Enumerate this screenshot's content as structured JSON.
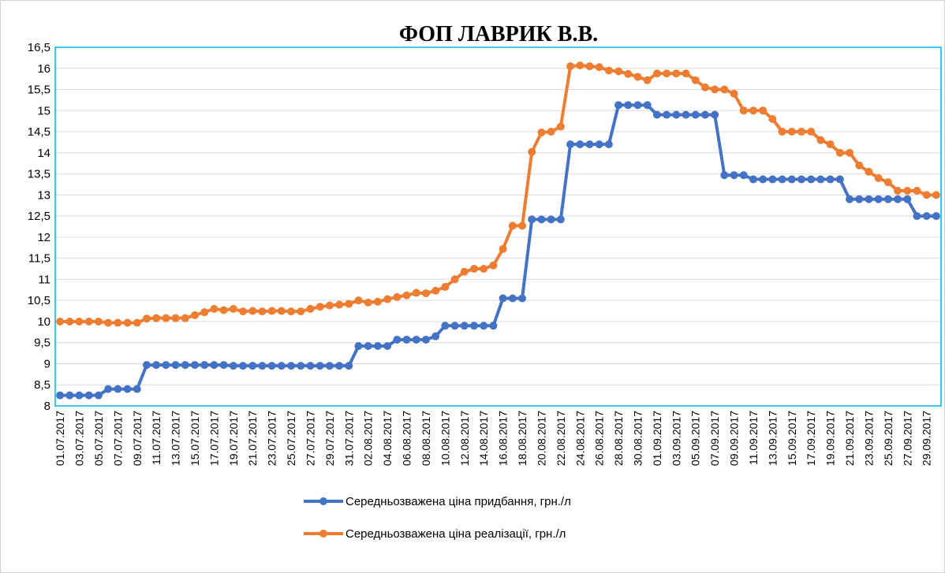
{
  "chart_data": {
    "type": "line",
    "title": "ФОП ЛАВРИК В.В.",
    "categories": [
      "01.07.2017",
      null,
      "03.07.2017",
      null,
      "05.07.2017",
      null,
      "07.07.2017",
      null,
      "09.07.2017",
      null,
      "11.07.2017",
      null,
      "13.07.2017",
      null,
      "15.07.2017",
      null,
      "17.07.2017",
      null,
      "19.07.2017",
      null,
      "21.07.2017",
      null,
      "23.07.2017",
      null,
      "25.07.2017",
      null,
      "27.07.2017",
      null,
      "29.07.2017",
      null,
      "31.07.2017",
      null,
      "02.08.2017",
      null,
      "04.08.2017",
      null,
      "06.08.2017",
      null,
      "08.08.2017",
      null,
      "10.08.2017",
      null,
      "12.08.2017",
      null,
      "14.08.2017",
      null,
      "16.08.2017",
      null,
      "18.08.2017",
      null,
      "20.08.2017",
      null,
      "22.08.2017",
      null,
      "24.08.2017",
      null,
      "26.08.2017",
      null,
      "28.08.2017",
      null,
      "30.08.2017",
      null,
      "01.09.2017",
      null,
      "03.09.2017",
      null,
      "05.09.2017",
      null,
      "07.09.2017",
      null,
      "09.09.2017",
      null,
      "11.09.2017",
      null,
      "13.09.2017",
      null,
      "15.09.2017",
      null,
      "17.09.2017",
      null,
      "19.09.2017",
      null,
      "21.09.2017",
      null,
      "23.09.2017",
      null,
      "25.09.2017",
      null,
      "27.09.2017",
      null,
      "29.09.2017",
      null
    ],
    "series": [
      {
        "name": "Середньозважена ціна придбання, грн./л",
        "color": "#4472c4",
        "values": [
          8.25,
          8.25,
          8.25,
          8.25,
          8.25,
          8.4,
          8.4,
          8.4,
          8.4,
          8.97,
          8.97,
          8.97,
          8.97,
          8.97,
          8.97,
          8.97,
          8.97,
          8.97,
          8.95,
          8.95,
          8.95,
          8.95,
          8.95,
          8.95,
          8.95,
          8.95,
          8.95,
          8.95,
          8.95,
          8.95,
          8.95,
          9.42,
          9.42,
          9.42,
          9.42,
          9.57,
          9.57,
          9.57,
          9.57,
          9.65,
          9.9,
          9.9,
          9.9,
          9.9,
          9.9,
          9.9,
          10.55,
          10.55,
          10.55,
          12.42,
          12.42,
          12.42,
          12.42,
          14.2,
          14.2,
          14.2,
          14.2,
          14.2,
          15.13,
          15.13,
          15.13,
          15.13,
          14.9,
          14.9,
          14.9,
          14.9,
          14.9,
          14.9,
          14.9,
          13.47,
          13.47,
          13.47,
          13.37,
          13.37,
          13.37,
          13.37,
          13.37,
          13.37,
          13.37,
          13.37,
          13.37,
          13.37,
          12.9,
          12.9,
          12.9,
          12.9,
          12.9,
          12.9,
          12.9,
          12.5,
          12.5,
          12.5
        ]
      },
      {
        "name": "Середньозважена ціна реалізації, грн./л",
        "color": "#ed7d31",
        "values": [
          10.0,
          10.0,
          10.0,
          10.0,
          10.0,
          9.97,
          9.97,
          9.97,
          9.97,
          10.07,
          10.08,
          10.08,
          10.08,
          10.08,
          10.15,
          10.22,
          10.3,
          10.27,
          10.3,
          10.24,
          10.25,
          10.24,
          10.25,
          10.25,
          10.24,
          10.24,
          10.3,
          10.35,
          10.38,
          10.4,
          10.42,
          10.5,
          10.45,
          10.47,
          10.53,
          10.58,
          10.62,
          10.68,
          10.67,
          10.73,
          10.82,
          11.0,
          11.18,
          11.25,
          11.25,
          11.33,
          11.72,
          12.27,
          12.27,
          14.02,
          14.48,
          14.5,
          14.62,
          16.05,
          16.07,
          16.05,
          16.03,
          15.95,
          15.93,
          15.87,
          15.8,
          15.72,
          15.88,
          15.88,
          15.88,
          15.88,
          15.72,
          15.55,
          15.5,
          15.5,
          15.4,
          15.0,
          15.0,
          15.0,
          14.8,
          14.5,
          14.5,
          14.5,
          14.5,
          14.3,
          14.2,
          14.0,
          14.0,
          13.7,
          13.55,
          13.4,
          13.3,
          13.1,
          13.1,
          13.1,
          13.0,
          13.0
        ]
      }
    ],
    "ylim": [
      8,
      16.5
    ],
    "yticks": [
      8,
      {
        "value": 8.5,
        "label": "8,5"
      },
      9,
      {
        "value": 9.5,
        "label": "9,5"
      },
      10,
      {
        "value": 10.5,
        "label": "10,5"
      },
      11,
      {
        "value": 11.5,
        "label": "11,5"
      },
      12,
      {
        "value": 12.5,
        "label": "12,5"
      },
      13,
      {
        "value": 13.5,
        "label": "13,5"
      },
      14,
      {
        "value": 14.5,
        "label": "14,5"
      },
      15,
      {
        "value": 15.5,
        "label": "15,5"
      },
      16,
      {
        "value": 16.5,
        "label": "16,5"
      }
    ],
    "grid": true,
    "legend": "bottom"
  }
}
